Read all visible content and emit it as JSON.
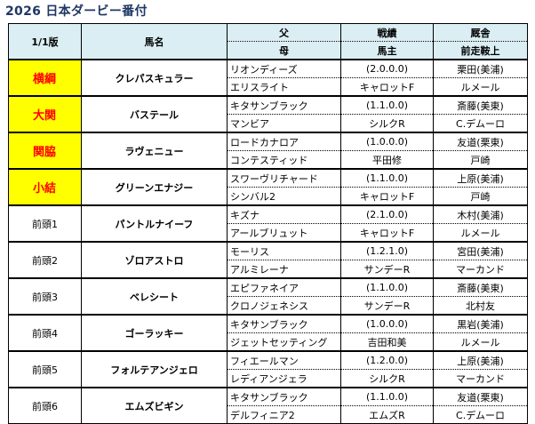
{
  "title": "2026 日本ダービー番付",
  "header": {
    "edition": "1/1版",
    "horse": "馬名",
    "sire": "父",
    "dam": "母",
    "record": "戦績",
    "owner": "馬主",
    "stable": "厩舎",
    "jockey": "前走鞍上"
  },
  "rows": [
    {
      "rank": "横綱",
      "highlight": true,
      "horse": "クレパスキュラー",
      "sire": "リオンディーズ",
      "dam": "エリスライト",
      "record": "(2.0.0.0)",
      "owner": "キャロットF",
      "stable": "栗田(美浦)",
      "jockey": "ルメール"
    },
    {
      "rank": "大関",
      "highlight": true,
      "horse": "バステール",
      "sire": "キタサンブラック",
      "dam": "マンビア",
      "record": "(1.1.0.0)",
      "owner": "シルクR",
      "stable": "斎藤(美東)",
      "jockey": "C.デムーロ"
    },
    {
      "rank": "関脇",
      "highlight": true,
      "horse": "ラヴェニュー",
      "sire": "ロードカナロア",
      "dam": "コンテスティッド",
      "record": "(1.0.0.0)",
      "owner": "平田修",
      "stable": "友道(栗東)",
      "jockey": "戸崎"
    },
    {
      "rank": "小結",
      "highlight": true,
      "horse": "グリーンエナジー",
      "sire": "スワーヴリチャード",
      "dam": "シンバル2",
      "record": "(1.1.0.0)",
      "owner": "キャロットF",
      "stable": "上原(美浦)",
      "jockey": "戸崎"
    },
    {
      "rank": "前頭1",
      "highlight": false,
      "horse": "パントルナイーフ",
      "sire": "キズナ",
      "dam": "アールブリュット",
      "record": "(2.1.0.0)",
      "owner": "キャロットF",
      "stable": "木村(美浦)",
      "jockey": "ルメール"
    },
    {
      "rank": "前頭2",
      "highlight": false,
      "horse": "ゾロアストロ",
      "sire": "モーリス",
      "dam": "アルミレーナ",
      "record": "(1.2.1.0)",
      "owner": "サンデーR",
      "stable": "宮田(美浦)",
      "jockey": "マーカンド"
    },
    {
      "rank": "前頭3",
      "highlight": false,
      "horse": "ベレシート",
      "sire": "エピファネイア",
      "dam": "クロノジェネシス",
      "record": "(1.1.0.0)",
      "owner": "サンデーR",
      "stable": "斎藤(美東)",
      "jockey": "北村友"
    },
    {
      "rank": "前頭4",
      "highlight": false,
      "horse": "ゴーラッキー",
      "sire": "キタサンブラック",
      "dam": "ジェットセッティング",
      "record": "(1.0.0.0)",
      "owner": "吉田和美",
      "stable": "黒岩(美浦)",
      "jockey": "ルメール"
    },
    {
      "rank": "前頭5",
      "highlight": false,
      "horse": "フォルテアンジェロ",
      "sire": "フィエールマン",
      "dam": "レディアンジェラ",
      "record": "(1.2.0.0)",
      "owner": "シルクR",
      "stable": "上原(美浦)",
      "jockey": "マーカンド"
    },
    {
      "rank": "前頭6",
      "highlight": false,
      "horse": "エムズビギン",
      "sire": "キタサンブラック",
      "dam": "デルフィニア2",
      "record": "(1.1.0.0)",
      "owner": "エムズR",
      "stable": "友道(栗東)",
      "jockey": "C.デムーロ"
    }
  ]
}
